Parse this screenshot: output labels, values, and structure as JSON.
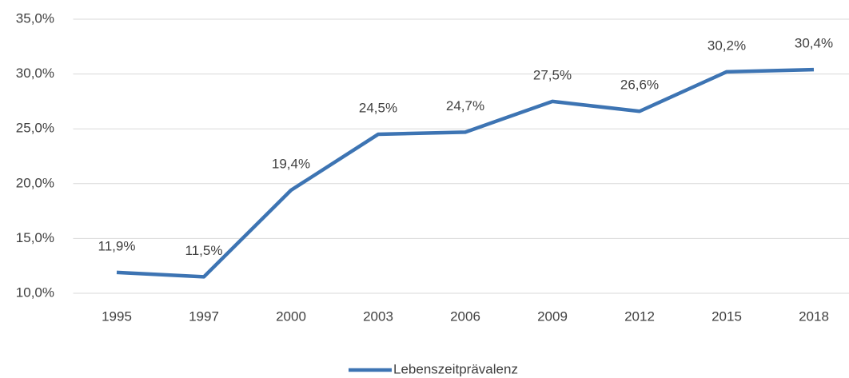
{
  "chart_data": {
    "type": "line",
    "categories": [
      "1995",
      "1997",
      "2000",
      "2003",
      "2006",
      "2009",
      "2012",
      "2015",
      "2018"
    ],
    "series": [
      {
        "name": "Lebenszeitprävalenz",
        "color": "#3d74b3",
        "values": [
          11.9,
          11.5,
          19.4,
          24.5,
          24.7,
          27.5,
          26.6,
          30.2,
          30.4
        ],
        "value_labels": [
          "11,9%",
          "11,5%",
          "19,4%",
          "24,5%",
          "24,7%",
          "27,5%",
          "26,6%",
          "30,2%",
          "30,4%"
        ]
      }
    ],
    "ylim": [
      10,
      35
    ],
    "yticks": [
      {
        "value": 10,
        "label": "10,0%"
      },
      {
        "value": 15,
        "label": "15,0%"
      },
      {
        "value": 20,
        "label": "20,0%"
      },
      {
        "value": 25,
        "label": "25,0%"
      },
      {
        "value": 30,
        "label": "30,0%"
      },
      {
        "value": 35,
        "label": "35,0%"
      }
    ],
    "grid": true,
    "legend": "bottom"
  }
}
